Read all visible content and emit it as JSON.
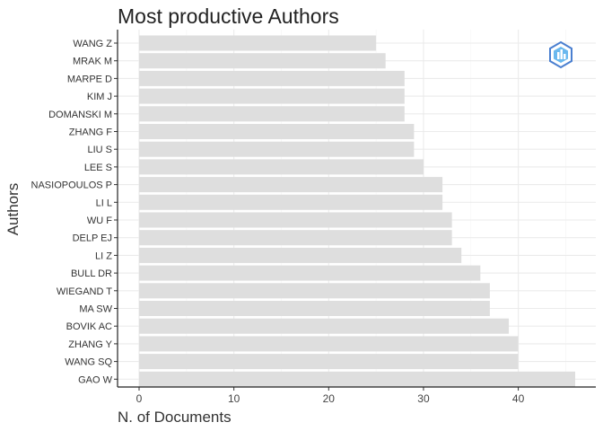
{
  "chart_data": {
    "type": "bar",
    "orientation": "horizontal",
    "title": "Most productive Authors",
    "xlabel": "N. of Documents",
    "ylabel": "Authors",
    "categories": [
      "WANG Z",
      "MRAK M",
      "MARPE D",
      "KIM J",
      "DOMANSKI M",
      "ZHANG F",
      "LIU S",
      "LEE S",
      "NASIOPOULOS P",
      "LI L",
      "WU F",
      "DELP EJ",
      "LI Z",
      "BULL DR",
      "WIEGAND T",
      "MA SW",
      "BOVIK AC",
      "ZHANG Y",
      "WANG SQ",
      "GAO W"
    ],
    "values": [
      25,
      26,
      28,
      28,
      28,
      29,
      29,
      30,
      32,
      32,
      33,
      33,
      34,
      36,
      37,
      37,
      39,
      40,
      40,
      46
    ],
    "xlim": [
      0,
      46
    ],
    "xticks": [
      0,
      10,
      20,
      30,
      40
    ],
    "grid": true,
    "bar_color": "#dedede"
  },
  "logo": {
    "icon": "bibliometrix-logo-icon",
    "colors": [
      "#4a7fd0",
      "#6ab8ee"
    ]
  }
}
